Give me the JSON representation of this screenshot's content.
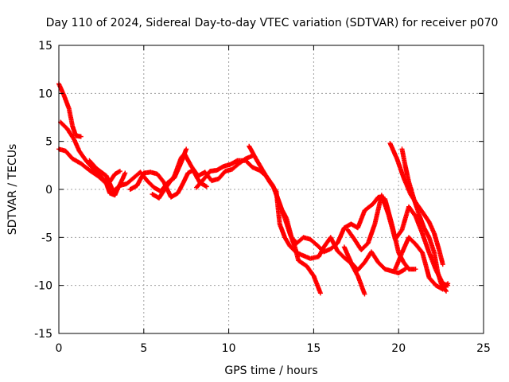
{
  "chart_data": {
    "type": "scatter",
    "title": "Day 110 of 2024, Sidereal Day-to-day VTEC variation (SDTVAR) for receiver p070",
    "xlabel": "GPS time / hours",
    "ylabel": "SDTVAR / TECUs",
    "xlim": [
      0,
      25
    ],
    "ylim": [
      -15,
      15
    ],
    "xticks": [
      0,
      5,
      10,
      15,
      20,
      25
    ],
    "yticks": [
      -15,
      -10,
      -5,
      0,
      5,
      10,
      15
    ],
    "grid": true,
    "marker": "+",
    "series": [
      {
        "name": "sat-1",
        "color": "#ff0000",
        "points": [
          [
            0.0,
            11.0
          ],
          [
            0.3,
            9.8
          ],
          [
            0.6,
            8.4
          ],
          [
            0.8,
            6.6
          ],
          [
            1.0,
            5.6
          ],
          [
            1.3,
            5.5
          ]
        ]
      },
      {
        "name": "sat-2",
        "color": "#ff0000",
        "points": [
          [
            0.0,
            4.2
          ],
          [
            0.4,
            4.0
          ],
          [
            0.8,
            3.2
          ],
          [
            1.3,
            2.7
          ],
          [
            1.8,
            2.0
          ],
          [
            2.3,
            1.4
          ],
          [
            2.8,
            0.6
          ],
          [
            3.0,
            -0.4
          ],
          [
            3.3,
            -0.6
          ],
          [
            3.5,
            0.2
          ],
          [
            3.7,
            0.9
          ],
          [
            3.9,
            1.7
          ]
        ]
      },
      {
        "name": "sat-3",
        "color": "#ff0000",
        "points": [
          [
            0.1,
            7.0
          ],
          [
            0.5,
            6.3
          ],
          [
            0.9,
            5.2
          ],
          [
            1.2,
            4.0
          ],
          [
            1.6,
            3.0
          ],
          [
            2.0,
            2.2
          ],
          [
            2.4,
            1.5
          ],
          [
            2.7,
            0.9
          ],
          [
            3.0,
            0.8
          ],
          [
            3.3,
            1.6
          ],
          [
            3.6,
            1.9
          ]
        ]
      },
      {
        "name": "sat-4",
        "color": "#ff0000",
        "points": [
          [
            1.8,
            3.0
          ],
          [
            2.2,
            2.2
          ],
          [
            2.5,
            1.8
          ],
          [
            2.8,
            1.4
          ],
          [
            3.2,
            -0.2
          ],
          [
            3.6,
            0.4
          ],
          [
            4.0,
            0.6
          ],
          [
            4.4,
            1.2
          ],
          [
            4.8,
            1.8
          ],
          [
            5.2,
            0.9
          ],
          [
            5.6,
            0.2
          ],
          [
            6.0,
            -0.2
          ],
          [
            6.4,
            0.7
          ],
          [
            6.8,
            1.2
          ],
          [
            7.2,
            2.8
          ],
          [
            7.5,
            4.2
          ]
        ]
      },
      {
        "name": "sat-5",
        "color": "#ff0000",
        "points": [
          [
            4.2,
            0.0
          ],
          [
            4.6,
            0.4
          ],
          [
            5.0,
            1.7
          ],
          [
            5.4,
            1.8
          ],
          [
            5.8,
            1.6
          ],
          [
            6.2,
            0.7
          ],
          [
            6.6,
            -0.8
          ],
          [
            7.0,
            -0.4
          ],
          [
            7.3,
            0.6
          ],
          [
            7.6,
            1.7
          ],
          [
            7.9,
            2.0
          ],
          [
            8.3,
            0.7
          ],
          [
            8.7,
            0.3
          ]
        ]
      },
      {
        "name": "sat-6",
        "color": "#ff0000",
        "points": [
          [
            5.5,
            -0.5
          ],
          [
            5.9,
            -0.9
          ],
          [
            6.3,
            0.2
          ],
          [
            6.8,
            1.4
          ],
          [
            7.2,
            3.3
          ],
          [
            7.4,
            3.7
          ],
          [
            7.8,
            2.4
          ],
          [
            8.2,
            1.4
          ],
          [
            8.6,
            1.8
          ],
          [
            9.0,
            0.9
          ],
          [
            9.4,
            1.1
          ],
          [
            9.8,
            1.9
          ],
          [
            10.2,
            2.1
          ],
          [
            10.6,
            2.7
          ],
          [
            11.0,
            3.2
          ],
          [
            11.4,
            3.5
          ]
        ]
      },
      {
        "name": "sat-7",
        "color": "#ff0000",
        "points": [
          [
            8.1,
            0.2
          ],
          [
            8.5,
            1.0
          ],
          [
            8.9,
            1.9
          ],
          [
            9.3,
            2.0
          ],
          [
            9.7,
            2.4
          ],
          [
            10.1,
            2.6
          ],
          [
            10.5,
            3.0
          ],
          [
            11.0,
            3.0
          ],
          [
            11.4,
            2.3
          ],
          [
            11.8,
            2.0
          ],
          [
            12.2,
            1.4
          ],
          [
            12.6,
            0.4
          ],
          [
            13.0,
            -1.5
          ],
          [
            13.3,
            -3.0
          ],
          [
            13.6,
            -4.6
          ],
          [
            13.9,
            -6.0
          ],
          [
            14.1,
            -7.4
          ],
          [
            14.6,
            -8.0
          ],
          [
            15.0,
            -9.0
          ],
          [
            15.4,
            -10.8
          ]
        ]
      },
      {
        "name": "sat-8",
        "color": "#ff0000",
        "points": [
          [
            11.2,
            4.5
          ],
          [
            11.6,
            3.2
          ],
          [
            12.0,
            2.0
          ],
          [
            12.4,
            0.8
          ],
          [
            12.8,
            -0.2
          ],
          [
            13.0,
            -3.6
          ],
          [
            13.3,
            -5.0
          ],
          [
            13.6,
            -5.9
          ],
          [
            14.0,
            -6.6
          ],
          [
            14.4,
            -6.9
          ],
          [
            14.8,
            -7.2
          ],
          [
            15.3,
            -7.0
          ],
          [
            15.6,
            -6.0
          ],
          [
            16.0,
            -5.0
          ],
          [
            16.4,
            -6.4
          ],
          [
            16.8,
            -7.1
          ],
          [
            17.2,
            -7.7
          ],
          [
            17.6,
            -9.0
          ],
          [
            18.0,
            -10.9
          ]
        ]
      },
      {
        "name": "sat-9",
        "color": "#ff0000",
        "points": [
          [
            12.8,
            -0.5
          ],
          [
            13.1,
            -2.0
          ],
          [
            13.4,
            -3.0
          ],
          [
            13.7,
            -5.0
          ],
          [
            14.0,
            -5.6
          ],
          [
            14.4,
            -5.0
          ],
          [
            14.8,
            -5.2
          ],
          [
            15.2,
            -5.8
          ],
          [
            15.6,
            -6.5
          ],
          [
            16.0,
            -6.2
          ],
          [
            16.4,
            -5.6
          ],
          [
            16.8,
            -4.0
          ],
          [
            17.2,
            -3.6
          ],
          [
            17.6,
            -4.0
          ],
          [
            18.0,
            -2.2
          ],
          [
            18.5,
            -1.5
          ],
          [
            18.8,
            -0.8
          ],
          [
            19.2,
            -1.0
          ],
          [
            19.6,
            -3.6
          ],
          [
            20.0,
            -6.6
          ],
          [
            20.3,
            -7.6
          ],
          [
            20.6,
            -8.3
          ],
          [
            21.0,
            -8.3
          ]
        ]
      },
      {
        "name": "sat-10",
        "color": "#ff0000",
        "points": [
          [
            16.8,
            -6.0
          ],
          [
            17.2,
            -7.6
          ],
          [
            17.6,
            -8.4
          ],
          [
            18.0,
            -7.6
          ],
          [
            18.4,
            -6.5
          ],
          [
            18.8,
            -7.6
          ],
          [
            19.2,
            -8.3
          ],
          [
            19.6,
            -8.5
          ],
          [
            20.0,
            -8.7
          ],
          [
            20.4,
            -8.3
          ]
        ]
      },
      {
        "name": "sat-11",
        "color": "#ff0000",
        "points": [
          [
            17.0,
            -4.2
          ],
          [
            17.4,
            -5.2
          ],
          [
            17.8,
            -6.3
          ],
          [
            18.2,
            -5.6
          ],
          [
            18.6,
            -3.6
          ],
          [
            19.0,
            -0.6
          ],
          [
            19.4,
            -2.6
          ],
          [
            19.8,
            -5.2
          ],
          [
            20.2,
            -4.2
          ],
          [
            20.6,
            -1.8
          ],
          [
            21.0,
            -2.8
          ],
          [
            21.4,
            -4.6
          ],
          [
            21.8,
            -6.6
          ],
          [
            22.2,
            -8.4
          ],
          [
            22.6,
            -9.8
          ],
          [
            22.9,
            -10.0
          ]
        ]
      },
      {
        "name": "sat-12",
        "color": "#ff0000",
        "points": [
          [
            19.5,
            4.8
          ],
          [
            19.9,
            3.2
          ],
          [
            20.3,
            1.2
          ],
          [
            20.7,
            -0.5
          ],
          [
            21.1,
            -1.6
          ],
          [
            21.5,
            -2.6
          ],
          [
            21.8,
            -3.4
          ],
          [
            22.1,
            -4.6
          ],
          [
            22.4,
            -6.4
          ],
          [
            22.6,
            -7.8
          ]
        ]
      },
      {
        "name": "sat-13",
        "color": "#ff0000",
        "points": [
          [
            20.2,
            4.2
          ],
          [
            20.4,
            2.4
          ],
          [
            20.6,
            0.8
          ],
          [
            20.9,
            -1.0
          ],
          [
            21.2,
            -2.6
          ],
          [
            21.5,
            -4.0
          ],
          [
            21.8,
            -5.0
          ],
          [
            22.1,
            -6.6
          ],
          [
            22.3,
            -8.6
          ],
          [
            22.5,
            -9.8
          ],
          [
            22.8,
            -10.6
          ]
        ]
      },
      {
        "name": "sat-14",
        "color": "#ff0000",
        "points": [
          [
            19.8,
            -8.3
          ],
          [
            20.2,
            -6.6
          ],
          [
            20.6,
            -5.0
          ],
          [
            21.0,
            -5.7
          ],
          [
            21.4,
            -6.6
          ],
          [
            21.8,
            -9.2
          ],
          [
            22.2,
            -10.0
          ],
          [
            22.6,
            -10.4
          ],
          [
            22.9,
            -9.8
          ]
        ]
      }
    ]
  }
}
